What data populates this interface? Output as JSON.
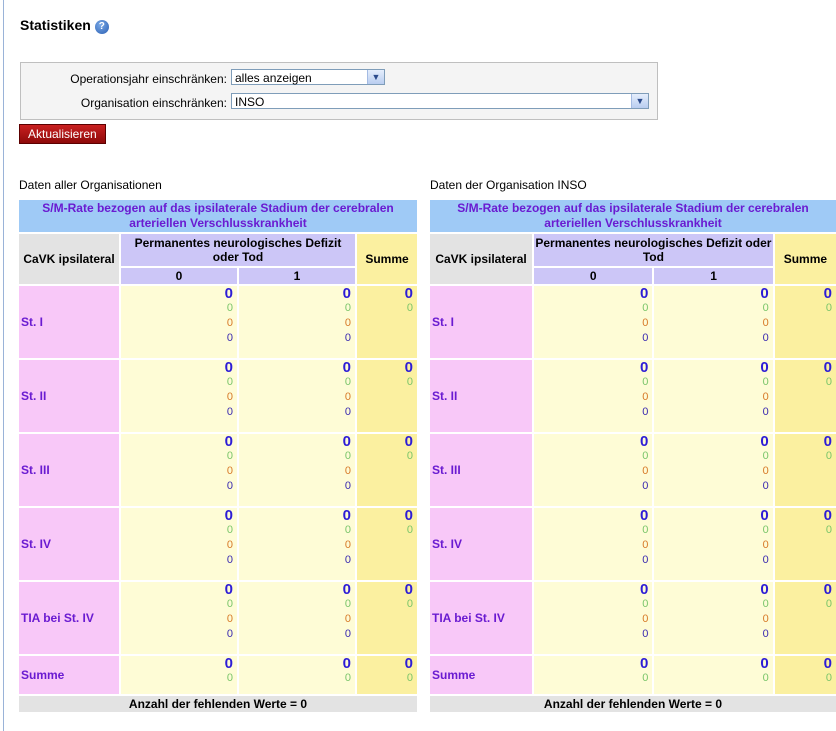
{
  "page": {
    "title": "Statistiken",
    "help_icon": "question-circle-icon"
  },
  "filters": {
    "year_label": "Operationsjahr einschränken:",
    "year_value": "alles anzeigen",
    "org_label": "Organisation einschränken:",
    "org_value": "INSO"
  },
  "update_button": "Aktualisieren",
  "colors": {
    "header_blue": "#9fcaf6",
    "row_pink": "#f8c8f8",
    "cell_yellow": "#fefcd6",
    "sum_yellow": "#fbf0a0",
    "button_red": "#b31616"
  },
  "tables": [
    {
      "label": "Daten aller Organisationen",
      "title": "S/M-Rate bezogen auf das ipsilaterale Stadium der cerebralen arteriellen Verschlusskrankheit",
      "row_header": "CaVK ipsilateral",
      "col_group": "Permanentes neurologisches Defizit oder Tod",
      "col_0": "0",
      "col_1": "1",
      "sum_header": "Summe",
      "rows": [
        {
          "label": "St. I",
          "c0": [
            "0",
            "0",
            "0",
            "0"
          ],
          "c1": [
            "0",
            "0",
            "0",
            "0"
          ],
          "sum": [
            "0",
            "0"
          ]
        },
        {
          "label": "St. II",
          "c0": [
            "0",
            "0",
            "0",
            "0"
          ],
          "c1": [
            "0",
            "0",
            "0",
            "0"
          ],
          "sum": [
            "0",
            "0"
          ]
        },
        {
          "label": "St. III",
          "c0": [
            "0",
            "0",
            "0",
            "0"
          ],
          "c1": [
            "0",
            "0",
            "0",
            "0"
          ],
          "sum": [
            "0",
            "0"
          ]
        },
        {
          "label": "St. IV",
          "c0": [
            "0",
            "0",
            "0",
            "0"
          ],
          "c1": [
            "0",
            "0",
            "0",
            "0"
          ],
          "sum": [
            "0",
            "0"
          ]
        },
        {
          "label": "TIA bei St. IV",
          "c0": [
            "0",
            "0",
            "0",
            "0"
          ],
          "c1": [
            "0",
            "0",
            "0",
            "0"
          ],
          "sum": [
            "0",
            "0"
          ]
        }
      ],
      "total": {
        "label": "Summe",
        "c0": [
          "0",
          "0"
        ],
        "c1": [
          "0",
          "0"
        ],
        "sum": [
          "0",
          "0"
        ]
      },
      "footer": "Anzahl der fehlenden Werte = 0"
    },
    {
      "label": "Daten der Organisation INSO",
      "title": "S/M-Rate bezogen auf das ipsilaterale Stadium der cerebralen arteriellen Verschlusskrankheit",
      "row_header": "CaVK ipsilateral",
      "col_group": "Permanentes neurologisches Defizit oder Tod",
      "col_0": "0",
      "col_1": "1",
      "sum_header": "Summe",
      "rows": [
        {
          "label": "St. I",
          "c0": [
            "0",
            "0",
            "0",
            "0"
          ],
          "c1": [
            "0",
            "0",
            "0",
            "0"
          ],
          "sum": [
            "0",
            "0"
          ]
        },
        {
          "label": "St. II",
          "c0": [
            "0",
            "0",
            "0",
            "0"
          ],
          "c1": [
            "0",
            "0",
            "0",
            "0"
          ],
          "sum": [
            "0",
            "0"
          ]
        },
        {
          "label": "St. III",
          "c0": [
            "0",
            "0",
            "0",
            "0"
          ],
          "c1": [
            "0",
            "0",
            "0",
            "0"
          ],
          "sum": [
            "0",
            "0"
          ]
        },
        {
          "label": "St. IV",
          "c0": [
            "0",
            "0",
            "0",
            "0"
          ],
          "c1": [
            "0",
            "0",
            "0",
            "0"
          ],
          "sum": [
            "0",
            "0"
          ]
        },
        {
          "label": "TIA bei St. IV",
          "c0": [
            "0",
            "0",
            "0",
            "0"
          ],
          "c1": [
            "0",
            "0",
            "0",
            "0"
          ],
          "sum": [
            "0",
            "0"
          ]
        }
      ],
      "total": {
        "label": "Summe",
        "c0": [
          "0",
          "0"
        ],
        "c1": [
          "0",
          "0"
        ],
        "sum": [
          "0",
          "0"
        ]
      },
      "footer": "Anzahl der fehlenden Werte = 0"
    }
  ]
}
